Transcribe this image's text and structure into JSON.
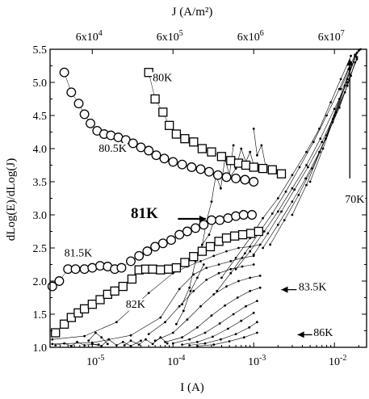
{
  "chart_data": {
    "type": "scatter",
    "top_axis_title": "J (A/m²)",
    "xlabel": "I (A)",
    "ylabel": "dLog(E)/dLog(J)",
    "x_scale": "log",
    "xlim": [
      3e-06,
      0.025
    ],
    "ylim": [
      1.0,
      5.5
    ],
    "yticks": [
      1.0,
      1.5,
      2.0,
      2.5,
      3.0,
      3.5,
      4.0,
      4.5,
      5.0,
      5.5
    ],
    "ytick_labels": [
      "1.0",
      "1.5",
      "2.0",
      "2.5",
      "3.0",
      "3.5",
      "4.0",
      "4.5",
      "5.0",
      "5.5"
    ],
    "xticks": [
      1e-05,
      0.0001,
      0.001,
      0.01
    ],
    "xtick_labels": [
      {
        "base": "10",
        "exp": "-5"
      },
      {
        "base": "10",
        "exp": "-4"
      },
      {
        "base": "10",
        "exp": "-3"
      },
      {
        "base": "10",
        "exp": "-2"
      }
    ],
    "top_ticks_at_I": [
      1e-05,
      0.0001,
      0.001,
      0.01
    ],
    "top_tick_labels": [
      {
        "base": "6x10",
        "exp": "4"
      },
      {
        "base": "6x10",
        "exp": "5"
      },
      {
        "base": "6x10",
        "exp": "6"
      },
      {
        "base": "6x10",
        "exp": "7"
      }
    ],
    "grid": false,
    "annotations": [
      {
        "text": "80K",
        "x": 5.6e-05,
        "y": 5.02,
        "bold": false
      },
      {
        "text": "80.5K",
        "x": 1.2e-05,
        "y": 3.95,
        "bold": false
      },
      {
        "text": "81K",
        "x": 3e-05,
        "y": 2.95,
        "bold": true
      },
      {
        "text": "81.5K",
        "x": 4.5e-06,
        "y": 2.37,
        "bold": false
      },
      {
        "text": "82K",
        "x": 2.6e-05,
        "y": 1.6,
        "bold": false
      },
      {
        "text": "83.5K",
        "x": 0.0036,
        "y": 1.86,
        "bold": false
      },
      {
        "text": "86K",
        "x": 0.0055,
        "y": 1.17,
        "bold": false
      },
      {
        "text": "70K",
        "x": 0.0135,
        "y": 3.18,
        "bold": false
      }
    ],
    "arrows": [
      {
        "label": "81K",
        "from": [
          0.000115,
          2.94
        ],
        "to": [
          0.000255,
          2.94
        ]
      },
      {
        "label": "83.5K",
        "from": [
          0.0034,
          1.87
        ],
        "to": [
          0.0022,
          1.87
        ]
      },
      {
        "label": "86K",
        "from": [
          0.0053,
          1.19
        ],
        "to": [
          0.0035,
          1.19
        ]
      },
      {
        "label": "70K",
        "from": [
          0.0155,
          3.55
        ],
        "to": [
          0.0155,
          5.35
        ]
      }
    ],
    "series": [
      {
        "name": "80K",
        "marker": "square",
        "x": [
          5e-05,
          6e-05,
          7.5e-05,
          9e-05,
          0.00011,
          0.00014,
          0.00018,
          0.00023,
          0.0003,
          0.0004,
          0.00052,
          0.00065,
          0.0008,
          0.001,
          0.0013,
          0.0017,
          0.0022
        ],
        "y": [
          5.15,
          4.75,
          4.55,
          4.35,
          4.22,
          4.15,
          4.1,
          4.0,
          3.95,
          3.88,
          3.82,
          3.78,
          3.75,
          3.72,
          3.7,
          3.68,
          3.62
        ]
      },
      {
        "name": "80.5K",
        "marker": "circle",
        "x": [
          4.5e-06,
          5.5e-06,
          6.8e-06,
          8e-06,
          9.5e-06,
          1.15e-05,
          1.4e-05,
          1.7e-05,
          2.1e-05,
          2.6e-05,
          3.2e-05,
          4e-05,
          5e-05,
          6.2e-05,
          7.8e-05,
          0.0001,
          0.00013,
          0.00017,
          0.00022,
          0.00028,
          0.00036,
          0.00046,
          0.0006,
          0.00078,
          0.001
        ],
        "y": [
          5.15,
          4.85,
          4.68,
          4.52,
          4.38,
          4.27,
          4.22,
          4.2,
          4.17,
          4.13,
          4.08,
          4.02,
          3.97,
          3.9,
          3.85,
          3.8,
          3.76,
          3.72,
          3.69,
          3.65,
          3.6,
          3.57,
          3.55,
          3.53,
          3.5
        ]
      },
      {
        "name": "81.5K",
        "marker": "circle",
        "x": [
          3.2e-06,
          3.9e-06,
          5e-06,
          6.2e-06,
          8e-06,
          1e-05,
          1.25e-05,
          1.55e-05,
          1.9e-05,
          2.3e-05,
          3e-05,
          3.8e-05,
          4.8e-05,
          6e-05,
          7.5e-05,
          9.5e-05,
          0.00012,
          0.00015,
          0.00019,
          0.00024,
          0.0003,
          0.00038,
          0.00048,
          0.0006,
          0.00075,
          0.00095
        ],
        "y": [
          1.92,
          2.0,
          2.18,
          2.18,
          2.18,
          2.2,
          2.23,
          2.22,
          2.18,
          2.2,
          2.3,
          2.38,
          2.45,
          2.52,
          2.57,
          2.62,
          2.7,
          2.75,
          2.8,
          2.85,
          2.92,
          2.92,
          2.95,
          2.98,
          3.0,
          3.0
        ]
      },
      {
        "name": "82K",
        "marker": "square",
        "x": [
          3.5e-06,
          4.5e-06,
          5.5e-06,
          6.7e-06,
          8e-06,
          1e-05,
          1.25e-05,
          1.55e-05,
          1.9e-05,
          2.4e-05,
          3.1e-05,
          3.8e-05,
          4.6e-05,
          5.6e-05,
          7e-05,
          8.8e-05,
          0.00011,
          0.00014,
          0.00018,
          0.00023,
          0.00029,
          0.00037,
          0.00046,
          0.00058,
          0.00073,
          0.00092,
          0.00115
        ],
        "y": [
          1.22,
          1.35,
          1.45,
          1.52,
          1.58,
          1.65,
          1.72,
          1.8,
          1.85,
          1.92,
          2.03,
          2.17,
          2.18,
          2.18,
          2.17,
          2.18,
          2.2,
          2.28,
          2.37,
          2.45,
          2.52,
          2.6,
          2.65,
          2.68,
          2.7,
          2.72,
          2.75
        ]
      }
    ],
    "curves": [
      {
        "x": [
          3.2e-06,
          8e-06,
          2e-05,
          5e-05,
          0.0001,
          0.00015,
          0.00022,
          0.00032,
          0.00046,
          0.00065,
          0.0009,
          0.0012
        ],
        "y": [
          1.12,
          1.17,
          1.38,
          1.82,
          2.12,
          2.22,
          2.3,
          2.38,
          2.45,
          2.5,
          2.52,
          2.55
        ]
      },
      {
        "x": [
          3.2e-06,
          1e-05,
          3e-05,
          7e-05,
          0.00012,
          0.00018,
          0.00026,
          0.00037,
          0.00052,
          0.00072,
          0.001
        ],
        "y": [
          1.05,
          1.07,
          1.18,
          1.45,
          1.88,
          2.1,
          2.2,
          2.25,
          2.3,
          2.35,
          2.38
        ]
      },
      {
        "x": [
          5e-05,
          8e-05,
          0.00012,
          0.00018,
          0.00026,
          0.00037,
          0.00052,
          0.00072,
          0.001
        ],
        "y": [
          1.2,
          1.38,
          1.62,
          1.85,
          2.02,
          2.12,
          2.18,
          2.22,
          2.25
        ]
      },
      {
        "x": [
          6e-05,
          0.0001,
          0.00015,
          0.00022,
          0.00032,
          0.00046,
          0.00065,
          0.0009,
          0.0012
        ],
        "y": [
          1.1,
          1.22,
          1.42,
          1.62,
          1.8,
          1.92,
          2.0,
          2.05,
          2.08
        ]
      },
      {
        "x": [
          8e-05,
          0.00013,
          0.0002,
          0.0003,
          0.00044,
          0.00063,
          0.0009,
          0.0012
        ],
        "y": [
          1.08,
          1.15,
          1.3,
          1.48,
          1.63,
          1.75,
          1.85,
          1.9
        ]
      },
      {
        "x": [
          0.0001,
          0.00016,
          0.00025,
          0.00038,
          0.00056,
          0.0008,
          0.0011
        ],
        "y": [
          1.06,
          1.12,
          1.22,
          1.36,
          1.5,
          1.62,
          1.7
        ]
      },
      {
        "x": [
          0.00013,
          0.0002,
          0.00031,
          0.00048,
          0.0007,
          0.001
        ],
        "y": [
          1.04,
          1.08,
          1.16,
          1.28,
          1.4,
          1.52
        ]
      },
      {
        "x": [
          0.00016,
          0.00025,
          0.00039,
          0.0006,
          0.00088,
          0.0011
        ],
        "y": [
          1.03,
          1.06,
          1.12,
          1.2,
          1.3,
          1.38
        ]
      },
      {
        "x": [
          0.0002,
          0.00032,
          0.0005,
          0.00076,
          0.0011
        ],
        "y": [
          1.02,
          1.04,
          1.09,
          1.15,
          1.22
        ]
      },
      {
        "x": [
          0.0004,
          0.0006,
          0.0009,
          0.0013,
          0.002,
          0.003,
          0.0045,
          0.0065,
          0.009,
          0.012,
          0.016
        ],
        "y": [
          2.05,
          2.35,
          2.65,
          2.95,
          3.25,
          3.6,
          3.95,
          4.3,
          4.7,
          5.05,
          5.4
        ]
      },
      {
        "x": [
          0.00035,
          0.00052,
          0.00078,
          0.00115,
          0.0017,
          0.0025,
          0.0037,
          0.0055,
          0.008,
          0.0115,
          0.016
        ],
        "y": [
          1.85,
          2.12,
          2.42,
          2.72,
          3.02,
          3.35,
          3.72,
          4.1,
          4.5,
          4.9,
          5.3
        ]
      },
      {
        "x": [
          0.0006,
          0.0009,
          0.00135,
          0.002,
          0.003,
          0.0045,
          0.0067,
          0.01,
          0.0145,
          0.019
        ],
        "y": [
          2.18,
          2.45,
          2.75,
          3.05,
          3.4,
          3.75,
          4.15,
          4.6,
          5.0,
          5.35
        ]
      },
      {
        "x": [
          0.001,
          0.0015,
          0.0022,
          0.0032,
          0.0047,
          0.007,
          0.01,
          0.0145,
          0.019
        ],
        "y": [
          2.4,
          2.72,
          3.05,
          3.38,
          3.72,
          4.1,
          4.5,
          4.95,
          5.38
        ]
      },
      {
        "x": [
          0.0013,
          0.002,
          0.003,
          0.0044,
          0.0065,
          0.0095,
          0.0135,
          0.018
        ],
        "y": [
          2.5,
          2.85,
          3.2,
          3.55,
          3.95,
          4.4,
          4.85,
          5.3
        ]
      },
      {
        "x": [
          0.0016,
          0.0024,
          0.0036,
          0.0053,
          0.0078,
          0.0115,
          0.016
        ],
        "y": [
          2.55,
          2.92,
          3.3,
          3.7,
          4.15,
          4.62,
          5.1
        ]
      },
      {
        "x": [
          0.003,
          0.0045,
          0.0066,
          0.0096,
          0.0135,
          0.018
        ],
        "y": [
          3.0,
          3.45,
          3.95,
          4.45,
          4.95,
          5.4
        ]
      },
      {
        "x": [
          0.005,
          0.0072,
          0.0105,
          0.0145,
          0.019
        ],
        "y": [
          3.5,
          4.0,
          4.55,
          5.05,
          5.45
        ]
      },
      {
        "x": [
          0.008,
          0.0115,
          0.0155,
          0.02
        ],
        "y": [
          4.2,
          4.75,
          5.2,
          5.48
        ]
      },
      {
        "x": [
          0.012,
          0.015,
          0.018,
          0.021
        ],
        "y": [
          4.9,
          5.2,
          5.42,
          5.5
        ]
      },
      {
        "x": [
          0.00022,
          0.00026,
          0.0003,
          0.00034,
          0.00039,
          0.00044,
          0.0005,
          0.00056
        ],
        "y": [
          2.4,
          2.9,
          3.2,
          3.6,
          3.4,
          3.85,
          3.6,
          4.05
        ]
      },
      {
        "x": [
          0.00013,
          0.00016,
          0.00019,
          0.00023,
          0.00028,
          0.00033
        ],
        "y": [
          1.65,
          1.9,
          2.3,
          2.55,
          2.7,
          2.95
        ]
      },
      {
        "x": [
          0.00011,
          0.000135,
          0.000165,
          0.0002,
          0.00024
        ],
        "y": [
          1.35,
          1.55,
          1.85,
          2.05,
          2.25
        ]
      },
      {
        "x": [
          0.0005,
          0.0006,
          0.0007,
          0.0008,
          0.0009,
          0.001,
          0.0012
        ],
        "y": [
          3.55,
          3.7,
          4.0,
          3.8,
          3.95,
          3.75,
          3.7
        ]
      },
      {
        "x": [
          0.001,
          0.0011,
          0.00125,
          0.0014
        ],
        "y": [
          4.3,
          3.9,
          4.05,
          3.75
        ]
      },
      {
        "x": [
          3.5e-06,
          4.5e-06,
          5.5e-06,
          6.5e-06,
          8e-06,
          1e-05,
          1.2e-05
        ],
        "y": [
          1.03,
          1.06,
          1.02,
          1.08,
          1.03,
          1.05,
          1.04
        ]
      },
      {
        "x": [
          1e-05,
          1.3e-05,
          1.6e-05,
          2e-05,
          2.4e-05,
          3e-05,
          4e-05
        ],
        "y": [
          1.05,
          1.02,
          1.12,
          1.03,
          1.08,
          1.02,
          1.1
        ]
      },
      {
        "x": [
          2.5e-05,
          3e-05,
          3.8e-05,
          4.6e-05,
          5.6e-05,
          7e-05,
          8.5e-05
        ],
        "y": [
          1.03,
          1.1,
          1.04,
          1.12,
          1.05,
          1.15,
          1.06
        ]
      },
      {
        "x": [
          9e-06,
          1.1e-05,
          1.3e-05,
          1.55e-05
        ],
        "y": [
          1.1,
          1.22,
          1.15,
          1.05
        ]
      }
    ]
  }
}
